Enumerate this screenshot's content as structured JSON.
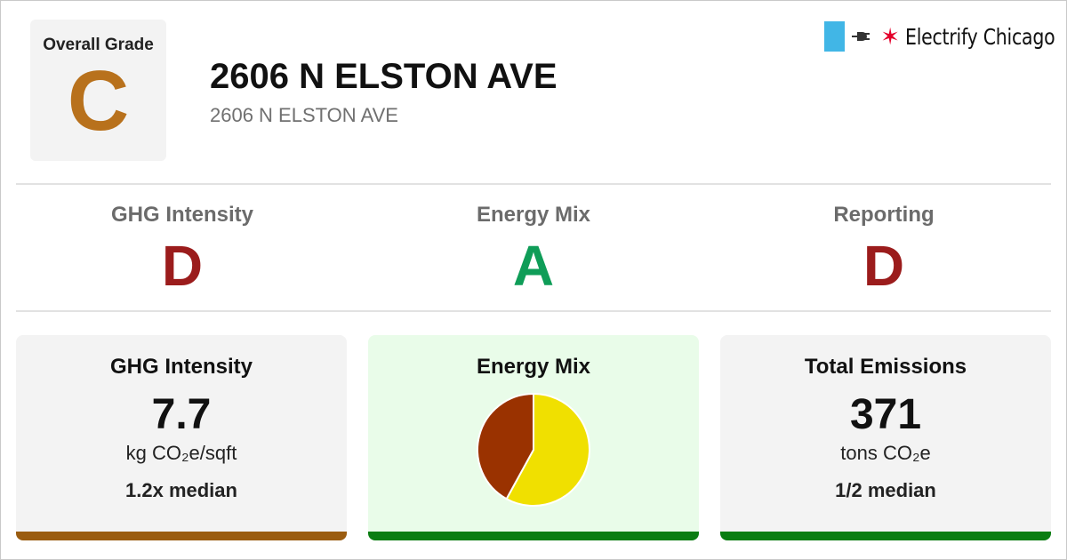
{
  "header": {
    "overall_label": "Overall Grade",
    "overall_grade": "C",
    "overall_color": "#b8711c",
    "title": "2606 N ELSTON AVE",
    "subtitle": "2606 N ELSTON AVE",
    "brand_name": "Electrify Chicago",
    "brand_icons": [
      "flag-stripe-icon",
      "plug-icon",
      "chicago-star-icon"
    ]
  },
  "categories": [
    {
      "label": "GHG Intensity",
      "grade": "D",
      "color": "#9b1c1c"
    },
    {
      "label": "Energy Mix",
      "grade": "A",
      "color": "#0f9d58"
    },
    {
      "label": "Reporting",
      "grade": "D",
      "color": "#9b1c1c"
    }
  ],
  "cards": {
    "ghg": {
      "title": "GHG Intensity",
      "value": "7.7",
      "unit": "kg CO₂e/sqft",
      "median": "1.2x median",
      "bar_color": "#9a5c10",
      "background": "#f3f3f3"
    },
    "mix": {
      "title": "Energy Mix",
      "bar_color": "#0a7d12",
      "background": "#e9fce9"
    },
    "total": {
      "title": "Total Emissions",
      "value": "371",
      "unit": "tons CO₂e",
      "median": "1/2 median",
      "bar_color": "#0a7d12",
      "background": "#f3f3f3"
    }
  },
  "chart_data": {
    "type": "pie",
    "values": [
      58,
      42
    ],
    "colors": [
      "#f0e000",
      "#9a3200"
    ]
  }
}
